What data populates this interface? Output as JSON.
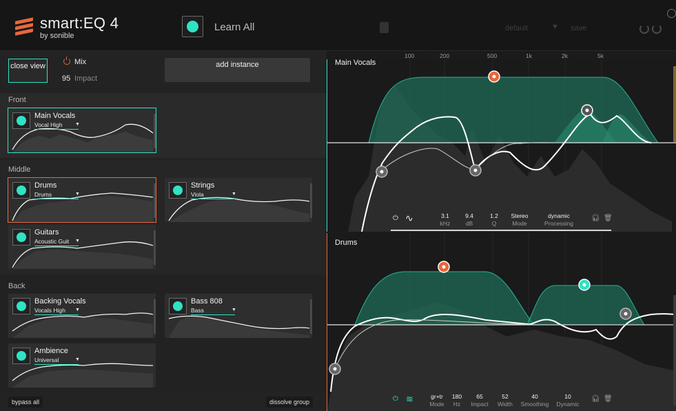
{
  "header": {
    "app_title": "smart:EQ 4",
    "by_label": "by sonible",
    "learn_label": "Learn All",
    "preset": "default",
    "save_label": "save",
    "icons": [
      "gear-icon",
      "undo-icon",
      "redo-icon",
      "learn-dot-icon"
    ]
  },
  "left": {
    "close_view": "close view",
    "mix_label": "Mix",
    "impact_value": "95",
    "impact_label": "Impact",
    "add_instance": "add instance",
    "bypass_all": "bypass all",
    "dissolve_group": "dissolve group",
    "groups": [
      {
        "name": "Front",
        "cards": [
          {
            "name": "Main Vocals",
            "profile": "Vocal High"
          }
        ]
      },
      {
        "name": "Middle",
        "cards": [
          {
            "name": "Drums",
            "profile": "Drums"
          },
          {
            "name": "Strings",
            "profile": "Viola"
          },
          {
            "name": "Guitars",
            "profile": "Acoustic Guit"
          }
        ]
      },
      {
        "name": "Back",
        "cards": [
          {
            "name": "Backing Vocals",
            "profile": "Vocals High"
          },
          {
            "name": "Bass 808",
            "profile": "Bass"
          },
          {
            "name": "Ambience",
            "profile": "Universal"
          }
        ]
      }
    ]
  },
  "main_vocals": {
    "title": "Main Vocals",
    "freq_labels": [
      "100",
      "200",
      "500",
      "1k",
      "2k",
      "5k"
    ],
    "controls": [
      {
        "value": "3.1",
        "label": "kHz"
      },
      {
        "value": "9.4",
        "label": "dB"
      },
      {
        "value": "1.2",
        "label": "Q"
      },
      {
        "value": "Stereo",
        "label": "Mode"
      },
      {
        "value": "dynamic",
        "label": "Processing"
      }
    ]
  },
  "drums": {
    "title": "Drums",
    "controls": [
      {
        "value": "gr+tr",
        "label": "Mode"
      },
      {
        "value": "180",
        "label": "Hz"
      },
      {
        "value": "65",
        "label": "Impact"
      },
      {
        "value": "52",
        "label": "Width"
      },
      {
        "value": "40",
        "label": "Smoothing"
      },
      {
        "value": "10",
        "label": "Dynamic"
      }
    ]
  },
  "colors": {
    "accent": "#2fe3c4",
    "selected_orange": "#e8673c",
    "band_fill": "#1f6b56"
  }
}
